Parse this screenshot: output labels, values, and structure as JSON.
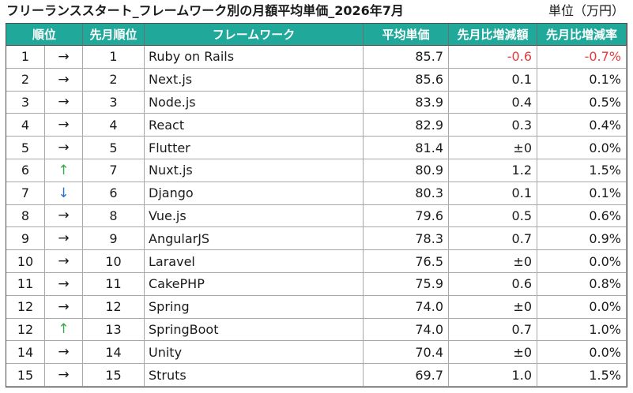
{
  "colors": {
    "header_bg": "#20a99a",
    "header_text": "#ffffff",
    "text": "#1a1a1a",
    "negative": "#e83a3a",
    "arrow_up": "#3aa84f",
    "arrow_down": "#2a6fd2"
  },
  "chart_data": {
    "type": "table",
    "title": "フリーランススタート_フレームワーク別の月額平均単価_2026年7月",
    "unit": "単位（万円）",
    "columns": [
      "順位",
      "先月順位",
      "フレームワーク",
      "平均単価",
      "先月比増減額",
      "先月比増減率"
    ],
    "rows": [
      {
        "rank": "1",
        "trend": "→",
        "prev_rank": "1",
        "framework": "Ruby on Rails",
        "avg_price": "85.7",
        "change": "-0.6",
        "change_rate": "-0.7%"
      },
      {
        "rank": "2",
        "trend": "→",
        "prev_rank": "2",
        "framework": "Next.js",
        "avg_price": "85.6",
        "change": "0.1",
        "change_rate": "0.1%"
      },
      {
        "rank": "3",
        "trend": "→",
        "prev_rank": "3",
        "framework": "Node.js",
        "avg_price": "83.9",
        "change": "0.4",
        "change_rate": "0.5%"
      },
      {
        "rank": "4",
        "trend": "→",
        "prev_rank": "4",
        "framework": "React",
        "avg_price": "82.9",
        "change": "0.3",
        "change_rate": "0.4%"
      },
      {
        "rank": "5",
        "trend": "→",
        "prev_rank": "5",
        "framework": "Flutter",
        "avg_price": "81.4",
        "change": "±0",
        "change_rate": "0.0%"
      },
      {
        "rank": "6",
        "trend": "↑",
        "prev_rank": "7",
        "framework": "Nuxt.js",
        "avg_price": "80.9",
        "change": "1.2",
        "change_rate": "1.5%"
      },
      {
        "rank": "7",
        "trend": "↓",
        "prev_rank": "6",
        "framework": "Django",
        "avg_price": "80.3",
        "change": "0.1",
        "change_rate": "0.1%"
      },
      {
        "rank": "8",
        "trend": "→",
        "prev_rank": "8",
        "framework": "Vue.js",
        "avg_price": "79.6",
        "change": "0.5",
        "change_rate": "0.6%"
      },
      {
        "rank": "9",
        "trend": "→",
        "prev_rank": "9",
        "framework": "AngularJS",
        "avg_price": "78.3",
        "change": "0.7",
        "change_rate": "0.9%"
      },
      {
        "rank": "10",
        "trend": "→",
        "prev_rank": "10",
        "framework": "Laravel",
        "avg_price": "76.5",
        "change": "±0",
        "change_rate": "0.0%"
      },
      {
        "rank": "11",
        "trend": "→",
        "prev_rank": "11",
        "framework": "CakePHP",
        "avg_price": "75.9",
        "change": "0.6",
        "change_rate": "0.8%"
      },
      {
        "rank": "12",
        "trend": "→",
        "prev_rank": "12",
        "framework": "Spring",
        "avg_price": "74.0",
        "change": "±0",
        "change_rate": "0.0%"
      },
      {
        "rank": "12",
        "trend": "↑",
        "prev_rank": "13",
        "framework": "SpringBoot",
        "avg_price": "74.0",
        "change": "0.7",
        "change_rate": "1.0%"
      },
      {
        "rank": "14",
        "trend": "→",
        "prev_rank": "14",
        "framework": "Unity",
        "avg_price": "70.4",
        "change": "±0",
        "change_rate": "0.0%"
      },
      {
        "rank": "15",
        "trend": "→",
        "prev_rank": "15",
        "framework": "Struts",
        "avg_price": "69.7",
        "change": "1.0",
        "change_rate": "1.5%"
      }
    ]
  }
}
